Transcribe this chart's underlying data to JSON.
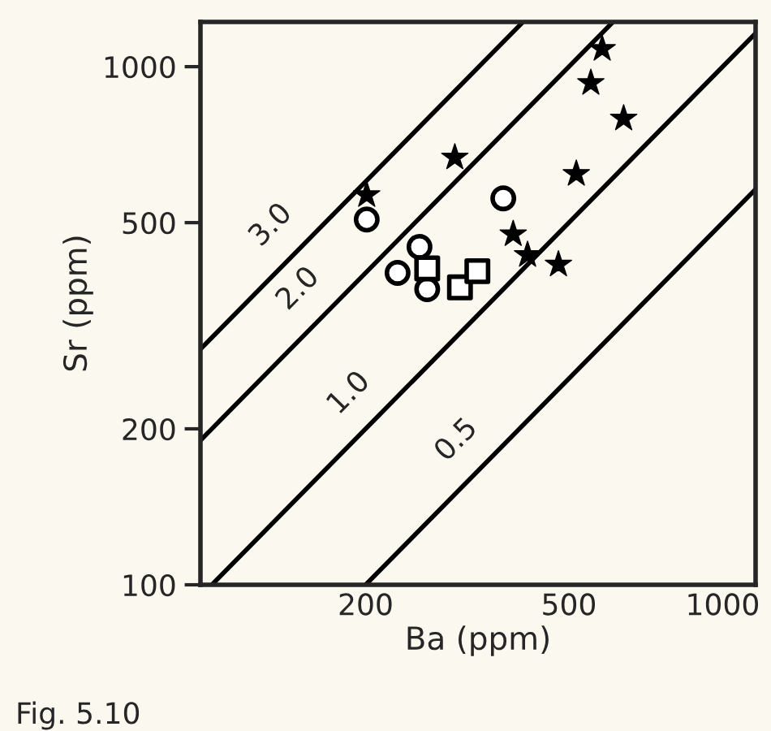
{
  "chart_data": {
    "type": "scatter",
    "xlabel": "Ba (ppm)",
    "ylabel": "Sr (ppm)",
    "log": "xy",
    "grid": false,
    "legend": false,
    "xlim": [
      95,
      1160
    ],
    "ylim": [
      100,
      1220
    ],
    "xticks": [
      200,
      500,
      1000
    ],
    "yticks": [
      100,
      200,
      500,
      1000
    ],
    "series": [
      {
        "type": "line",
        "name": "3.0",
        "color": "#000000",
        "marker": "none",
        "line_style": "solid",
        "x": [
          95,
          405
        ],
        "values": [
          285,
          1215
        ]
      },
      {
        "type": "line",
        "name": "2.0",
        "color": "#000000",
        "marker": "none",
        "line_style": "solid",
        "x": [
          95,
          610
        ],
        "values": [
          190,
          1220
        ]
      },
      {
        "type": "line",
        "name": "1.0",
        "color": "#000000",
        "marker": "none",
        "line_style": "solid",
        "x": [
          100,
          1160
        ],
        "values": [
          100,
          1160
        ]
      },
      {
        "type": "line",
        "name": "0.5",
        "color": "#000000",
        "marker": "none",
        "line_style": "solid",
        "x": [
          200,
          1160
        ],
        "values": [
          100,
          580
        ]
      },
      {
        "color": "#000000",
        "marker": "star",
        "x": [
          581,
          552,
          640,
          517,
          299,
          201,
          389,
          415,
          477
        ],
        "values": [
          1082,
          930,
          794,
          621,
          668,
          565,
          475,
          433,
          415
        ]
      },
      {
        "color": "#000000",
        "marker": "circle",
        "x": [
          201,
          372,
          255,
          231,
          264
        ],
        "values": [
          507,
          557,
          449,
          400,
          372
        ]
      },
      {
        "color": "#000000",
        "marker": "square",
        "x": [
          264,
          306,
          331
        ],
        "values": [
          408,
          375,
          403
        ]
      }
    ],
    "annotations": [
      "Fig. 5.10"
    ]
  }
}
